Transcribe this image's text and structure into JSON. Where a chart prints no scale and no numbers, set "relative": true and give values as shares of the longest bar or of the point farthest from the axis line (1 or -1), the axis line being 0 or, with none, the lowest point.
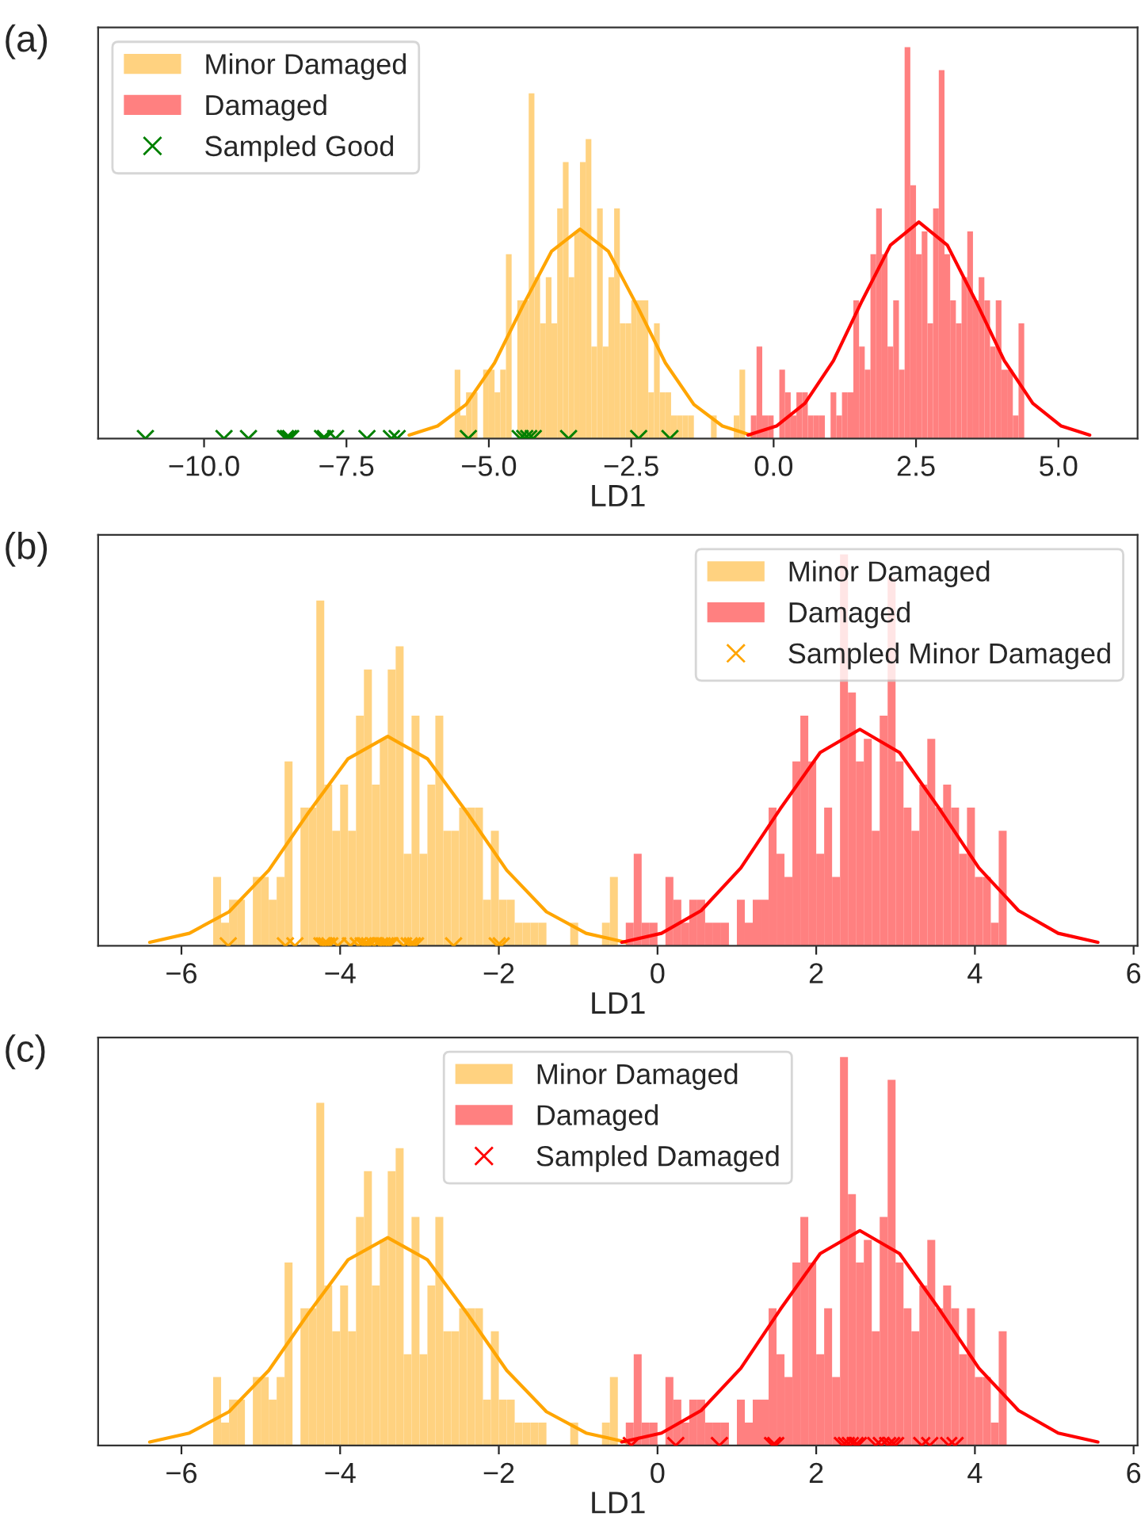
{
  "chart_data": [
    {
      "type": "histogram",
      "relative": true,
      "xlabel": "LD1",
      "annotations": [
        "(a)"
      ],
      "legend": "top left",
      "tick_labels": "x",
      "grid": false,
      "xlim": [
        -11.86,
        6.39
      ],
      "xticks": [
        {
          "value": -10,
          "label": "−10.0"
        },
        {
          "value": -7.5,
          "label": "−7.5"
        },
        {
          "value": -5,
          "label": "−5.0"
        },
        {
          "value": -2.5,
          "label": "−2.5"
        },
        {
          "value": 0,
          "label": "0.0"
        },
        {
          "value": 2.5,
          "label": "2.5"
        },
        {
          "value": 5,
          "label": "5.0"
        }
      ],
      "bins": [
        -5.6,
        -5.5,
        -5.4,
        -5.3,
        -5.2,
        -5.1,
        -5.0,
        -4.9,
        -4.8,
        -4.7,
        -4.6,
        -4.5,
        -4.4,
        -4.3,
        -4.2,
        -4.1,
        -4.0,
        -3.9,
        -3.8,
        -3.7,
        -3.6,
        -3.5,
        -3.4,
        -3.3,
        -3.2,
        -3.1,
        -3.0,
        -2.9,
        -2.8,
        -2.7,
        -2.6,
        -2.5,
        -2.4,
        -2.3,
        -2.2,
        -2.1,
        -2.0,
        -1.9,
        -1.8,
        -1.7,
        -1.6,
        -1.5,
        -1.4,
        -1.3,
        -1.2,
        -1.1,
        -1.0,
        -0.9,
        -0.8,
        -0.7,
        -0.6,
        -0.5,
        -0.4,
        -0.3,
        -0.2,
        -0.1,
        0.0,
        0.1,
        0.2,
        0.3,
        0.4,
        0.5,
        0.6,
        0.7,
        0.8,
        0.9,
        1.0,
        1.1,
        1.2,
        1.3,
        1.4,
        1.5,
        1.6,
        1.7,
        1.8,
        1.9,
        2.0,
        2.1,
        2.2,
        2.3,
        2.4,
        2.5,
        2.6,
        2.7,
        2.8,
        2.9,
        3.0,
        3.1,
        3.2,
        3.3,
        3.4,
        3.5,
        3.6,
        3.7,
        3.8,
        3.9,
        4.0,
        4.1,
        4.2,
        4.3,
        4.4
      ],
      "series": [
        {
          "name": "Minor Damaged",
          "color": "#ffd280",
          "values": [
            0.176,
            0.059,
            0.118,
            0.118,
            0,
            0.176,
            0.176,
            0.118,
            0.176,
            0.471,
            0,
            0.353,
            0.353,
            0.882,
            0.412,
            0.294,
            0.412,
            0.294,
            0.588,
            0.706,
            0.412,
            0.529,
            0.706,
            0.765,
            0.235,
            0.588,
            0.235,
            0.412,
            0.588,
            0.294,
            0.294,
            0.353,
            0.353,
            0.353,
            0.118,
            0.294,
            0.118,
            0.118,
            0.059,
            0.059,
            0.059,
            0.059,
            0,
            0,
            0,
            0.059,
            0,
            0,
            0,
            0.059,
            0.176,
            0,
            0,
            0,
            0,
            0,
            0,
            0,
            0,
            0,
            0,
            0,
            0,
            0,
            0,
            0,
            0,
            0,
            0,
            0,
            0,
            0,
            0,
            0,
            0,
            0,
            0,
            0,
            0,
            0,
            0,
            0,
            0,
            0,
            0,
            0,
            0,
            0,
            0,
            0,
            0,
            0,
            0,
            0,
            0,
            0,
            0,
            0,
            0,
            0
          ]
        },
        {
          "name": "Damaged",
          "color": "#ff8080",
          "values": [
            0,
            0,
            0,
            0,
            0,
            0,
            0,
            0,
            0,
            0,
            0,
            0,
            0,
            0,
            0,
            0,
            0,
            0,
            0,
            0,
            0,
            0,
            0,
            0,
            0,
            0,
            0,
            0,
            0,
            0,
            0,
            0,
            0,
            0,
            0,
            0,
            0,
            0,
            0,
            0,
            0,
            0,
            0,
            0,
            0,
            0,
            0,
            0,
            0,
            0,
            0,
            0,
            0.059,
            0.235,
            0.059,
            0.059,
            0,
            0.176,
            0.118,
            0.059,
            0.118,
            0.118,
            0.059,
            0.059,
            0.059,
            0,
            0.118,
            0.059,
            0.118,
            0.118,
            0.353,
            0.235,
            0.176,
            0.471,
            0.588,
            0.471,
            0.235,
            0.353,
            0.176,
            1,
            0.647,
            0.471,
            0.529,
            0.294,
            0.588,
            0.941,
            0.471,
            0.353,
            0.294,
            0.412,
            0.529,
            0.353,
            0.412,
            0.353,
            0.235,
            0.353,
            0.176,
            0.176,
            0.059,
            0.294
          ]
        },
        {
          "type": "line",
          "color": "#ffa500",
          "x": [
            -6.4,
            -5.9,
            -5.4,
            -4.9,
            -4.4,
            -3.9,
            -3.4,
            -2.9,
            -2.4,
            -1.9,
            -1.4,
            -0.9,
            -0.4
          ],
          "values": [
            0.009,
            0.032,
            0.087,
            0.193,
            0.34,
            0.478,
            0.535,
            0.478,
            0.34,
            0.193,
            0.087,
            0.032,
            0.009
          ]
        },
        {
          "type": "line",
          "color": "#ff0000",
          "x": [
            -0.45,
            0.05,
            0.55,
            1.05,
            1.55,
            2.05,
            2.55,
            3.05,
            3.55,
            4.05,
            4.55,
            5.05,
            5.55
          ],
          "values": [
            0.009,
            0.032,
            0.09,
            0.199,
            0.351,
            0.494,
            0.553,
            0.494,
            0.351,
            0.199,
            0.09,
            0.032,
            0.009
          ]
        },
        {
          "type": "scatter",
          "name": "Sampled Good",
          "color": "#008000",
          "marker": "cross",
          "x": [
            -11.03,
            -9.65,
            -9.22,
            -8.57,
            -8.52,
            -8.48,
            -7.92,
            -7.87,
            -7.69,
            -7.14,
            -6.71,
            -6.61,
            -5.36,
            -4.45,
            -4.37,
            -4.3,
            -4.22,
            -3.6,
            -2.37,
            -1.82
          ],
          "values": [
            0,
            0,
            0,
            0,
            0,
            0,
            0,
            0,
            0,
            0,
            0,
            0,
            0,
            0,
            0,
            0,
            0,
            0,
            0,
            0
          ]
        }
      ]
    },
    {
      "type": "histogram",
      "relative": true,
      "xlabel": "LD1",
      "annotations": [
        "(b)"
      ],
      "legend": "top right",
      "tick_labels": "x",
      "grid": false,
      "xlim": [
        -7.05,
        6.05
      ],
      "xticks": [
        {
          "value": -6,
          "label": "−6"
        },
        {
          "value": -4,
          "label": "−4"
        },
        {
          "value": -2,
          "label": "−2"
        },
        0,
        2,
        4,
        6
      ],
      "bins": [
        -5.6,
        -5.5,
        -5.4,
        -5.3,
        -5.2,
        -5.1,
        -5.0,
        -4.9,
        -4.8,
        -4.7,
        -4.6,
        -4.5,
        -4.4,
        -4.3,
        -4.2,
        -4.1,
        -4.0,
        -3.9,
        -3.8,
        -3.7,
        -3.6,
        -3.5,
        -3.4,
        -3.3,
        -3.2,
        -3.1,
        -3.0,
        -2.9,
        -2.8,
        -2.7,
        -2.6,
        -2.5,
        -2.4,
        -2.3,
        -2.2,
        -2.1,
        -2.0,
        -1.9,
        -1.8,
        -1.7,
        -1.6,
        -1.5,
        -1.4,
        -1.3,
        -1.2,
        -1.1,
        -1.0,
        -0.9,
        -0.8,
        -0.7,
        -0.6,
        -0.5,
        -0.4,
        -0.3,
        -0.2,
        -0.1,
        0.0,
        0.1,
        0.2,
        0.3,
        0.4,
        0.5,
        0.6,
        0.7,
        0.8,
        0.9,
        1.0,
        1.1,
        1.2,
        1.3,
        1.4,
        1.5,
        1.6,
        1.7,
        1.8,
        1.9,
        2.0,
        2.1,
        2.2,
        2.3,
        2.4,
        2.5,
        2.6,
        2.7,
        2.8,
        2.9,
        3.0,
        3.1,
        3.2,
        3.3,
        3.4,
        3.5,
        3.6,
        3.7,
        3.8,
        3.9,
        4.0,
        4.1,
        4.2,
        4.3,
        4.4
      ],
      "series": [
        {
          "name": "Minor Damaged",
          "color": "#ffd280",
          "values": [
            0.176,
            0.059,
            0.118,
            0.118,
            0,
            0.176,
            0.176,
            0.118,
            0.176,
            0.471,
            0,
            0.353,
            0.353,
            0.882,
            0.412,
            0.294,
            0.412,
            0.294,
            0.588,
            0.706,
            0.412,
            0.529,
            0.706,
            0.765,
            0.235,
            0.588,
            0.235,
            0.412,
            0.588,
            0.294,
            0.294,
            0.353,
            0.353,
            0.353,
            0.118,
            0.294,
            0.118,
            0.118,
            0.059,
            0.059,
            0.059,
            0.059,
            0,
            0,
            0,
            0.059,
            0,
            0,
            0,
            0.059,
            0.176,
            0,
            0,
            0,
            0,
            0,
            0,
            0,
            0,
            0,
            0,
            0,
            0,
            0,
            0,
            0,
            0,
            0,
            0,
            0,
            0,
            0,
            0,
            0,
            0,
            0,
            0,
            0,
            0,
            0,
            0,
            0,
            0,
            0,
            0,
            0,
            0,
            0,
            0,
            0,
            0,
            0,
            0,
            0,
            0,
            0,
            0,
            0,
            0,
            0
          ]
        },
        {
          "name": "Damaged",
          "color": "#ff8080",
          "values": [
            0,
            0,
            0,
            0,
            0,
            0,
            0,
            0,
            0,
            0,
            0,
            0,
            0,
            0,
            0,
            0,
            0,
            0,
            0,
            0,
            0,
            0,
            0,
            0,
            0,
            0,
            0,
            0,
            0,
            0,
            0,
            0,
            0,
            0,
            0,
            0,
            0,
            0,
            0,
            0,
            0,
            0,
            0,
            0,
            0,
            0,
            0,
            0,
            0,
            0,
            0,
            0,
            0.059,
            0.235,
            0.059,
            0.059,
            0,
            0.176,
            0.118,
            0.059,
            0.118,
            0.118,
            0.059,
            0.059,
            0.059,
            0,
            0.118,
            0.059,
            0.118,
            0.118,
            0.353,
            0.235,
            0.176,
            0.471,
            0.588,
            0.471,
            0.235,
            0.353,
            0.176,
            1,
            0.647,
            0.471,
            0.529,
            0.294,
            0.588,
            0.941,
            0.471,
            0.353,
            0.294,
            0.412,
            0.529,
            0.353,
            0.412,
            0.353,
            0.235,
            0.353,
            0.176,
            0.176,
            0.059,
            0.294
          ]
        },
        {
          "type": "line",
          "color": "#ffa500",
          "x": [
            -6.4,
            -5.9,
            -5.4,
            -4.9,
            -4.4,
            -3.9,
            -3.4,
            -2.9,
            -2.4,
            -1.9,
            -1.4,
            -0.9,
            -0.4
          ],
          "values": [
            0.009,
            0.032,
            0.087,
            0.193,
            0.34,
            0.478,
            0.535,
            0.478,
            0.34,
            0.193,
            0.087,
            0.032,
            0.009
          ]
        },
        {
          "type": "line",
          "color": "#ff0000",
          "x": [
            -0.45,
            0.05,
            0.55,
            1.05,
            1.55,
            2.05,
            2.55,
            3.05,
            3.55,
            4.05,
            4.55,
            5.05,
            5.55
          ],
          "values": [
            0.009,
            0.032,
            0.09,
            0.199,
            0.351,
            0.494,
            0.553,
            0.494,
            0.351,
            0.199,
            0.09,
            0.032,
            0.009
          ]
        },
        {
          "type": "scatter",
          "name": "Sampled Minor Damaged",
          "color": "#ffa500",
          "marker": "cross",
          "x": [
            -5.41,
            -4.69,
            -4.57,
            -4.23,
            -4.2,
            -4.17,
            -4.13,
            -4.03,
            -3.87,
            -3.77,
            -3.71,
            -3.67,
            -3.63,
            -3.57,
            -3.5,
            -3.47,
            -3.43,
            -3.4,
            -3.37,
            -3.2,
            -3.13,
            -3.09,
            -3.05,
            -2.57,
            -2.02,
            -1.97
          ],
          "values": [
            0,
            0,
            0,
            0,
            0,
            0,
            0,
            0,
            0,
            0,
            0,
            0,
            0,
            0,
            0,
            0,
            0,
            0,
            0,
            0,
            0,
            0,
            0,
            0,
            0,
            0
          ]
        }
      ]
    },
    {
      "type": "histogram",
      "relative": true,
      "xlabel": "LD1",
      "annotations": [
        "(c)"
      ],
      "legend": "top",
      "tick_labels": "x",
      "grid": false,
      "xlim": [
        -7.05,
        6.05
      ],
      "xticks": [
        {
          "value": -6,
          "label": "−6"
        },
        {
          "value": -4,
          "label": "−4"
        },
        {
          "value": -2,
          "label": "−2"
        },
        0,
        2,
        4,
        6
      ],
      "bins": [
        -5.6,
        -5.5,
        -5.4,
        -5.3,
        -5.2,
        -5.1,
        -5.0,
        -4.9,
        -4.8,
        -4.7,
        -4.6,
        -4.5,
        -4.4,
        -4.3,
        -4.2,
        -4.1,
        -4.0,
        -3.9,
        -3.8,
        -3.7,
        -3.6,
        -3.5,
        -3.4,
        -3.3,
        -3.2,
        -3.1,
        -3.0,
        -2.9,
        -2.8,
        -2.7,
        -2.6,
        -2.5,
        -2.4,
        -2.3,
        -2.2,
        -2.1,
        -2.0,
        -1.9,
        -1.8,
        -1.7,
        -1.6,
        -1.5,
        -1.4,
        -1.3,
        -1.2,
        -1.1,
        -1.0,
        -0.9,
        -0.8,
        -0.7,
        -0.6,
        -0.5,
        -0.4,
        -0.3,
        -0.2,
        -0.1,
        0.0,
        0.1,
        0.2,
        0.3,
        0.4,
        0.5,
        0.6,
        0.7,
        0.8,
        0.9,
        1.0,
        1.1,
        1.2,
        1.3,
        1.4,
        1.5,
        1.6,
        1.7,
        1.8,
        1.9,
        2.0,
        2.1,
        2.2,
        2.3,
        2.4,
        2.5,
        2.6,
        2.7,
        2.8,
        2.9,
        3.0,
        3.1,
        3.2,
        3.3,
        3.4,
        3.5,
        3.6,
        3.7,
        3.8,
        3.9,
        4.0,
        4.1,
        4.2,
        4.3,
        4.4
      ],
      "series": [
        {
          "name": "Minor Damaged",
          "color": "#ffd280",
          "values": [
            0.176,
            0.059,
            0.118,
            0.118,
            0,
            0.176,
            0.176,
            0.118,
            0.176,
            0.471,
            0,
            0.353,
            0.353,
            0.882,
            0.412,
            0.294,
            0.412,
            0.294,
            0.588,
            0.706,
            0.412,
            0.529,
            0.706,
            0.765,
            0.235,
            0.588,
            0.235,
            0.412,
            0.588,
            0.294,
            0.294,
            0.353,
            0.353,
            0.353,
            0.118,
            0.294,
            0.118,
            0.118,
            0.059,
            0.059,
            0.059,
            0.059,
            0,
            0,
            0,
            0.059,
            0,
            0,
            0,
            0.059,
            0.176,
            0,
            0,
            0,
            0,
            0,
            0,
            0,
            0,
            0,
            0,
            0,
            0,
            0,
            0,
            0,
            0,
            0,
            0,
            0,
            0,
            0,
            0,
            0,
            0,
            0,
            0,
            0,
            0,
            0,
            0,
            0,
            0,
            0,
            0,
            0,
            0,
            0,
            0,
            0,
            0,
            0,
            0,
            0,
            0,
            0,
            0,
            0,
            0,
            0
          ]
        },
        {
          "name": "Damaged",
          "color": "#ff8080",
          "values": [
            0,
            0,
            0,
            0,
            0,
            0,
            0,
            0,
            0,
            0,
            0,
            0,
            0,
            0,
            0,
            0,
            0,
            0,
            0,
            0,
            0,
            0,
            0,
            0,
            0,
            0,
            0,
            0,
            0,
            0,
            0,
            0,
            0,
            0,
            0,
            0,
            0,
            0,
            0,
            0,
            0,
            0,
            0,
            0,
            0,
            0,
            0,
            0,
            0,
            0,
            0,
            0,
            0.059,
            0.235,
            0.059,
            0.059,
            0,
            0.176,
            0.118,
            0.059,
            0.118,
            0.118,
            0.059,
            0.059,
            0.059,
            0,
            0.118,
            0.059,
            0.118,
            0.118,
            0.353,
            0.235,
            0.176,
            0.471,
            0.588,
            0.471,
            0.235,
            0.353,
            0.176,
            1,
            0.647,
            0.471,
            0.529,
            0.294,
            0.588,
            0.941,
            0.471,
            0.353,
            0.294,
            0.412,
            0.529,
            0.353,
            0.412,
            0.353,
            0.235,
            0.353,
            0.176,
            0.176,
            0.059,
            0.294
          ]
        },
        {
          "type": "line",
          "color": "#ffa500",
          "x": [
            -6.4,
            -5.9,
            -5.4,
            -4.9,
            -4.4,
            -3.9,
            -3.4,
            -2.9,
            -2.4,
            -1.9,
            -1.4,
            -0.9,
            -0.4
          ],
          "values": [
            0.009,
            0.032,
            0.087,
            0.193,
            0.34,
            0.478,
            0.535,
            0.478,
            0.34,
            0.193,
            0.087,
            0.032,
            0.009
          ]
        },
        {
          "type": "line",
          "color": "#ff0000",
          "x": [
            -0.45,
            0.05,
            0.55,
            1.05,
            1.55,
            2.05,
            2.55,
            3.05,
            3.55,
            4.05,
            4.55,
            5.05,
            5.55
          ],
          "values": [
            0.009,
            0.032,
            0.09,
            0.199,
            0.351,
            0.494,
            0.553,
            0.494,
            0.351,
            0.199,
            0.09,
            0.032,
            0.009
          ]
        },
        {
          "type": "scatter",
          "name": "Sampled Damaged",
          "color": "#ff0000",
          "marker": "cross",
          "x": [
            -0.33,
            0.23,
            0.78,
            1.45,
            1.49,
            2.33,
            2.38,
            2.43,
            2.49,
            2.53,
            2.75,
            2.82,
            2.9,
            2.95,
            3.0,
            3.33,
            3.43,
            3.67,
            3.75
          ],
          "values": [
            0,
            0,
            0,
            0,
            0,
            0,
            0,
            0,
            0,
            0,
            0,
            0,
            0,
            0,
            0,
            0,
            0,
            0,
            0
          ]
        }
      ]
    }
  ]
}
